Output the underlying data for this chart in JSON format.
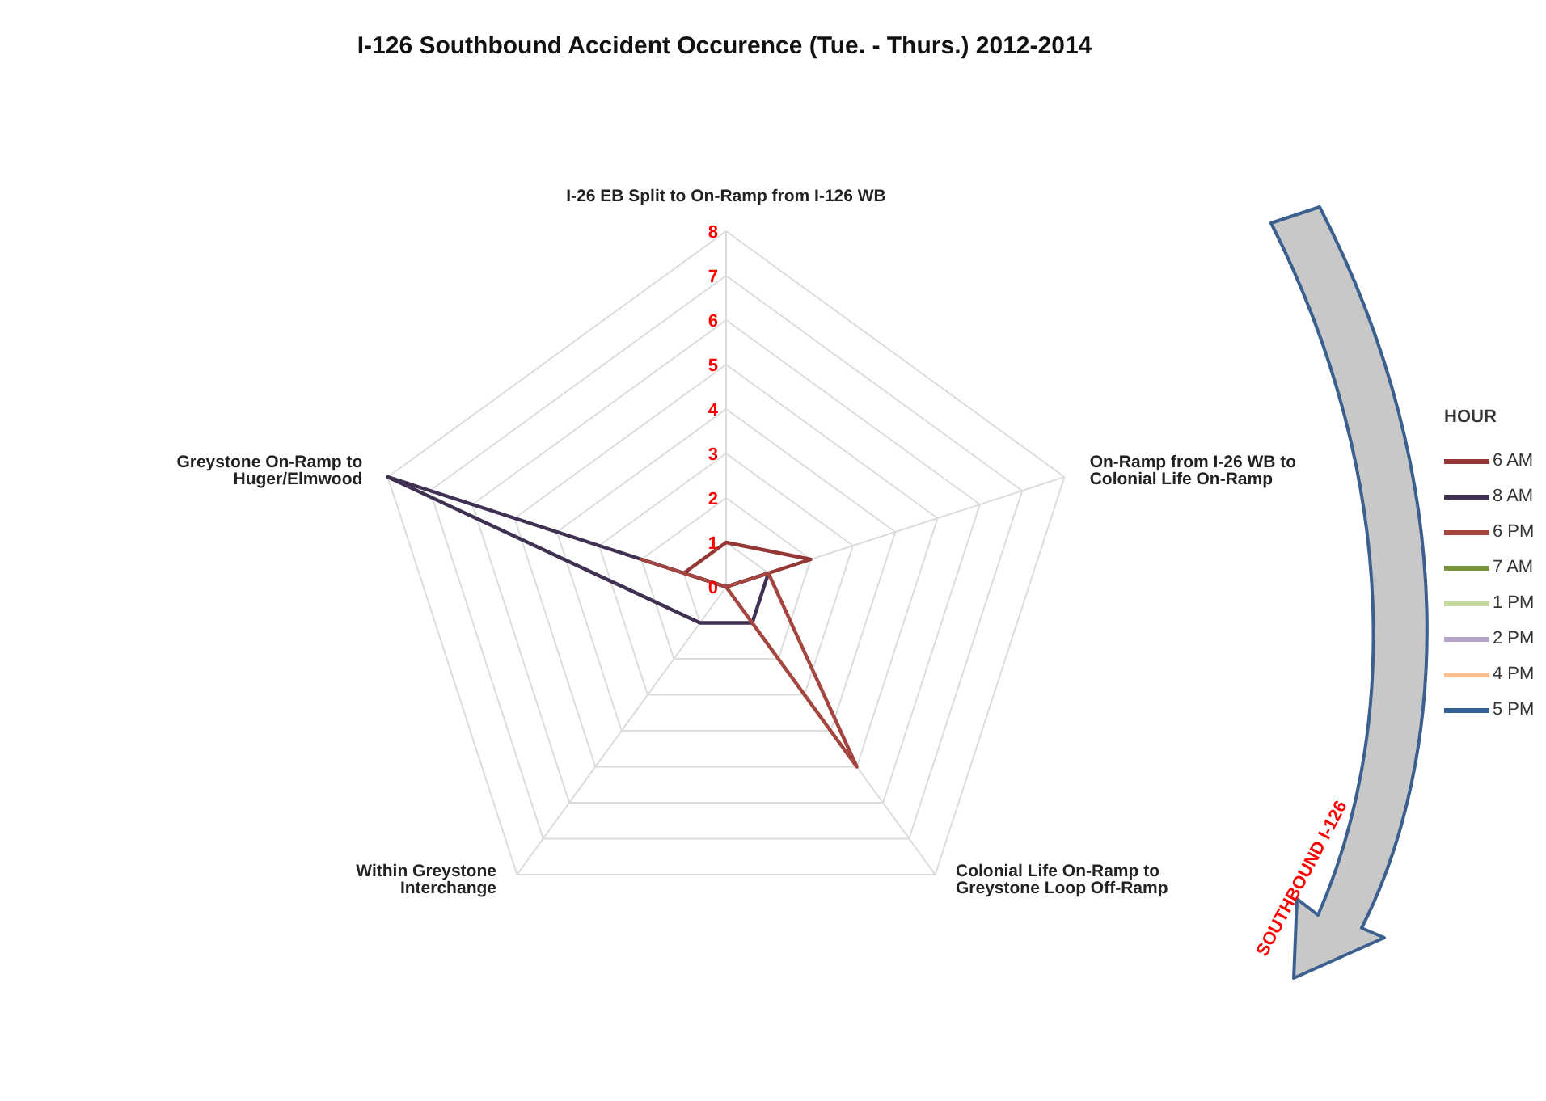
{
  "chart_data": {
    "type": "radar",
    "title": "I-126 Southbound Accident Occurence (Tue. - Thurs.) 2012-2014",
    "categories": [
      "I-26 EB Split to On-Ramp from I-126 WB",
      "On-Ramp from I-26 WB to Colonial Life On-Ramp",
      "Colonial Life On-Ramp to Greystone Loop Off-Ramp",
      "Within Greystone Interchange",
      "Greystone On-Ramp to Huger/Elmwood"
    ],
    "series": [
      {
        "name": "6 AM",
        "color": "#953735",
        "values": [
          1,
          2,
          0,
          0,
          1
        ]
      },
      {
        "name": "8 AM",
        "color": "#403152",
        "values": [
          0,
          1,
          1,
          1,
          8
        ]
      },
      {
        "name": "6 PM",
        "color": "#a5453f",
        "values": [
          0,
          1,
          5,
          0,
          2
        ]
      },
      {
        "name": "7 AM",
        "color": "#77933c",
        "values": [
          null,
          null,
          null,
          null,
          null
        ]
      },
      {
        "name": "1 PM",
        "color": "#c3d69b",
        "values": [
          null,
          null,
          null,
          null,
          null
        ]
      },
      {
        "name": "2 PM",
        "color": "#b3a2c7",
        "values": [
          null,
          null,
          null,
          null,
          null
        ]
      },
      {
        "name": "4 PM",
        "color": "#fac090",
        "values": [
          null,
          null,
          null,
          null,
          null
        ]
      },
      {
        "name": "5 PM",
        "color": "#376092",
        "values": [
          null,
          null,
          null,
          null,
          null
        ]
      }
    ],
    "ylim": [
      0,
      8
    ],
    "yticks": [
      0,
      1,
      2,
      3,
      4,
      5,
      6,
      7,
      8
    ],
    "grid": true,
    "legend": "right",
    "legend_title": "HOUR",
    "annotations": [
      "SOUTHBOUND I-126"
    ]
  }
}
